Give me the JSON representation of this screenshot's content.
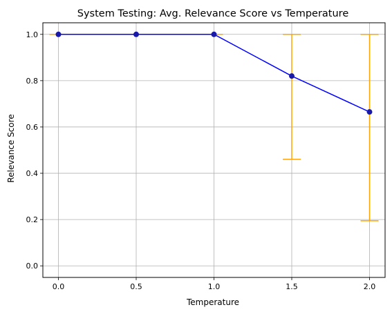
{
  "chart_data": {
    "type": "line",
    "title": "System Testing: Avg. Relevance Score vs Temperature",
    "xlabel": "Temperature",
    "ylabel": "Relevance Score",
    "x": [
      0.0,
      0.5,
      1.0,
      1.5,
      2.0
    ],
    "series": [
      {
        "values": [
          1.0,
          1.0,
          1.0,
          0.82,
          0.665
        ],
        "error_low": [
          1.0,
          1.0,
          1.0,
          0.46,
          0.195
        ],
        "error_high": [
          1.0,
          1.0,
          1.0,
          1.0,
          1.0
        ],
        "line_color": "#0000ff",
        "marker_color": "#1a1aa8",
        "error_color": "#ffa500"
      }
    ],
    "xlim": [
      -0.1,
      2.1
    ],
    "ylim": [
      -0.05,
      1.05
    ],
    "xticks": [
      "0.0",
      "0.5",
      "1.0",
      "1.5",
      "2.0"
    ],
    "xtick_values": [
      0.0,
      0.5,
      1.0,
      1.5,
      2.0
    ],
    "yticks": [
      "0.0",
      "0.2",
      "0.4",
      "0.6",
      "0.8",
      "1.0"
    ],
    "ytick_values": [
      0.0,
      0.2,
      0.4,
      0.6,
      0.8,
      1.0
    ],
    "grid": true,
    "grid_color": "#b0b0b0"
  }
}
